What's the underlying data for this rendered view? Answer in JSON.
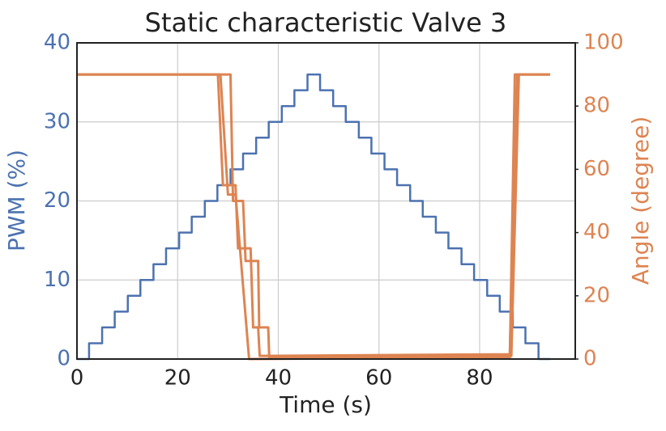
{
  "chart_data": {
    "type": "line",
    "title": "Static characteristic Valve 3",
    "x_label": "Time (s)",
    "y_label": "PWM (%)",
    "y2_label": "Angle (degree)",
    "xlim": [
      0,
      99
    ],
    "xticks": [
      0,
      20,
      40,
      60,
      80
    ],
    "ylim": [
      0,
      40
    ],
    "yticks": [
      0,
      10,
      20,
      30,
      40
    ],
    "y2lim": [
      0,
      100
    ],
    "y2ticks": [
      0,
      20,
      40,
      60,
      80,
      100
    ],
    "grid": true,
    "y_color": "#4c72b0",
    "y2_color": "#dd8452",
    "series": [
      {
        "color": "#4c72b0",
        "axis": "y",
        "x": [
          0,
          2.4,
          2.4,
          5.0,
          5.0,
          7.5,
          7.5,
          10.1,
          10.1,
          12.6,
          12.6,
          15.2,
          15.2,
          17.7,
          17.7,
          20.3,
          20.3,
          22.8,
          22.8,
          25.4,
          25.4,
          27.9,
          27.9,
          30.5,
          30.5,
          33.0,
          33.0,
          35.6,
          35.6,
          38.1,
          38.1,
          40.7,
          40.7,
          43.2,
          43.2,
          45.8,
          45.8,
          48.3,
          48.3,
          50.9,
          50.9,
          53.4,
          53.4,
          56.0,
          56.0,
          58.5,
          58.5,
          61.1,
          61.1,
          63.6,
          63.6,
          66.2,
          66.2,
          68.7,
          68.7,
          71.3,
          71.3,
          73.8,
          73.8,
          76.4,
          76.4,
          78.9,
          78.9,
          81.5,
          81.5,
          84.0,
          84.0,
          86.6,
          86.6,
          89.1,
          89.1,
          91.7,
          91.7,
          94
        ],
        "values": [
          0,
          0,
          2,
          2,
          4,
          4,
          6,
          6,
          8,
          8,
          10,
          10,
          12,
          12,
          14,
          14,
          16,
          16,
          18,
          18,
          20,
          20,
          22,
          22,
          24,
          24,
          26,
          26,
          28,
          28,
          30,
          30,
          32,
          32,
          34,
          34,
          36,
          36,
          34,
          34,
          32,
          32,
          30,
          30,
          28,
          28,
          26,
          26,
          24,
          24,
          22,
          22,
          20,
          20,
          18,
          18,
          16,
          16,
          14,
          14,
          12,
          12,
          10,
          10,
          8,
          8,
          6,
          6,
          4,
          4,
          2,
          2,
          0,
          0
        ]
      },
      {
        "color": "#dd8452",
        "axis": "y2",
        "x": [
          0,
          28,
          29,
          31.5,
          32,
          34.5,
          35,
          36,
          36.3,
          86,
          87.5,
          94
        ],
        "values": [
          90,
          90,
          55,
          55,
          35,
          35,
          10,
          10,
          1,
          1.5,
          90,
          90
        ]
      },
      {
        "color": "#dd8452",
        "axis": "y2",
        "x": [
          0,
          30.5,
          31,
          33,
          33.5,
          36,
          36.2,
          38,
          38.2,
          86.3,
          87.8,
          94
        ],
        "values": [
          90,
          90,
          50,
          50,
          31,
          31,
          10,
          10,
          0.5,
          1,
          90,
          90
        ]
      },
      {
        "color": "#dd8452",
        "axis": "y2",
        "x": [
          0,
          28.5,
          30,
          31.5,
          34.2,
          86,
          87,
          94
        ],
        "values": [
          90,
          90,
          52,
          52,
          0,
          0.5,
          90,
          90
        ]
      }
    ]
  }
}
